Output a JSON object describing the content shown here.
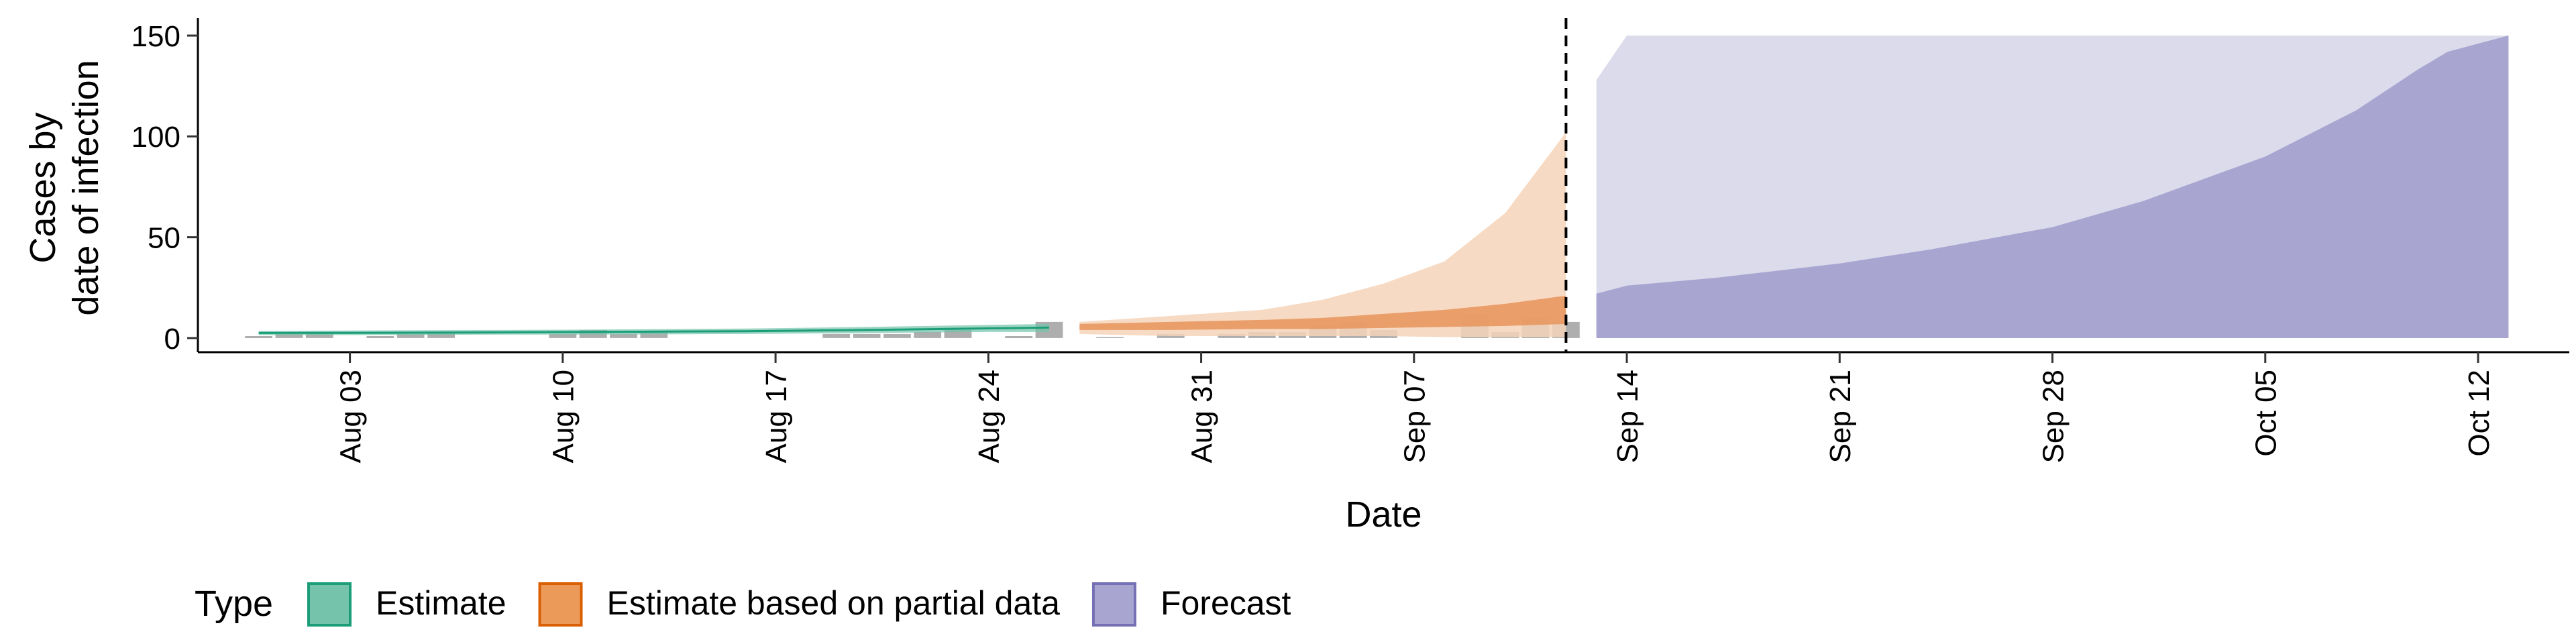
{
  "chart_data": {
    "type": "area",
    "title": "",
    "xlabel": "Date",
    "ylabel": [
      "Cases by",
      "date of infection"
    ],
    "y_ticks": [
      0,
      50,
      100,
      150
    ],
    "x_ticks": [
      "Aug 03",
      "Aug 10",
      "Aug 17",
      "Aug 24",
      "Aug 31",
      "Sep 07",
      "Sep 14",
      "Sep 21",
      "Sep 28",
      "Oct 05",
      "Oct 12"
    ],
    "xlim": [
      "2020-07-29",
      "2020-10-15"
    ],
    "ylim": [
      -7,
      156
    ],
    "vline_date": "2020-09-12",
    "grid": false,
    "legend": {
      "position": "bottom-left",
      "title": "Type",
      "items": [
        {
          "label": "Estimate",
          "fill": "#74c3aa",
          "stroke": "#1b9e77"
        },
        {
          "label": "Estimate based on partial data",
          "fill": "#ec9a5a",
          "stroke": "#d95f02"
        },
        {
          "label": "Forecast",
          "fill": "#a8a5d0",
          "stroke": "#7570b3"
        }
      ]
    },
    "colors": {
      "estimate_band": "#74c3aa",
      "estimate_line": "#1b9e77",
      "partial_outer": "#f5d3b8",
      "partial_inner": "#e8935a",
      "forecast_outer": "#dcdbec",
      "forecast_inner": "#a8a5d0",
      "observed_bars": "#a0a0a0"
    },
    "series": [
      {
        "name": "Estimate",
        "x": [
          "2020-07-31",
          "2020-08-04",
          "2020-08-08",
          "2020-08-12",
          "2020-08-16",
          "2020-08-20",
          "2020-08-24",
          "2020-08-26"
        ],
        "lower": [
          1.5,
          1.5,
          1.7,
          1.8,
          2.0,
          2.5,
          3.0,
          3.0
        ],
        "median": [
          2.5,
          2.6,
          2.8,
          3.1,
          3.4,
          4.0,
          4.8,
          5.2
        ],
        "upper": [
          3.5,
          3.8,
          4.0,
          4.3,
          4.7,
          5.5,
          6.5,
          7.0
        ]
      },
      {
        "name": "Estimate based on partial data",
        "x": [
          "2020-08-27",
          "2020-08-30",
          "2020-09-02",
          "2020-09-04",
          "2020-09-06",
          "2020-09-08",
          "2020-09-10",
          "2020-09-12"
        ],
        "outer_lower": [
          2,
          1,
          1,
          1,
          1,
          0.5,
          0.5,
          0.5
        ],
        "outer_upper": [
          8,
          11,
          14,
          19,
          27,
          38,
          62,
          102
        ],
        "inner_lower": [
          4,
          4,
          4.5,
          4.5,
          5,
          5.5,
          6,
          7
        ],
        "inner_upper": [
          7,
          8,
          9,
          10,
          12,
          14,
          17,
          21
        ]
      },
      {
        "name": "Forecast",
        "x": [
          "2020-09-13",
          "2020-09-14",
          "2020-09-17",
          "2020-09-21",
          "2020-09-24",
          "2020-09-28",
          "2020-10-01",
          "2020-10-05",
          "2020-10-08",
          "2020-10-10",
          "2020-10-11",
          "2020-10-13"
        ],
        "outer_lower": [
          2,
          1.5,
          0.5,
          0,
          0,
          0,
          0,
          0,
          0,
          0,
          0,
          0
        ],
        "outer_upper": [
          128,
          150,
          150,
          150,
          150,
          150,
          150,
          150,
          150,
          150,
          150,
          150
        ],
        "inner_lower": [
          0,
          0,
          0,
          0,
          0,
          0,
          0,
          0,
          0,
          0,
          0,
          0
        ],
        "inner_upper": [
          22,
          26,
          30,
          37,
          44,
          55,
          68,
          90,
          113,
          133,
          142,
          150
        ]
      },
      {
        "name": "Observed cases",
        "x": [
          "2020-07-31",
          "2020-08-01",
          "2020-08-02",
          "2020-08-04",
          "2020-08-05",
          "2020-08-06",
          "2020-08-10",
          "2020-08-11",
          "2020-08-12",
          "2020-08-13",
          "2020-08-19",
          "2020-08-20",
          "2020-08-21",
          "2020-08-22",
          "2020-08-23",
          "2020-08-25",
          "2020-08-26",
          "2020-08-28",
          "2020-08-30",
          "2020-09-01",
          "2020-09-02",
          "2020-09-03",
          "2020-09-04",
          "2020-09-05",
          "2020-09-06",
          "2020-09-09",
          "2020-09-10",
          "2020-09-11",
          "2020-09-12"
        ],
        "values": [
          1,
          2,
          3,
          1,
          2,
          3,
          2,
          4,
          2,
          3,
          2,
          2,
          2,
          3,
          4,
          1,
          8,
          0.5,
          2,
          2,
          3,
          3,
          6,
          8,
          4,
          12,
          3,
          10,
          8
        ]
      }
    ]
  }
}
